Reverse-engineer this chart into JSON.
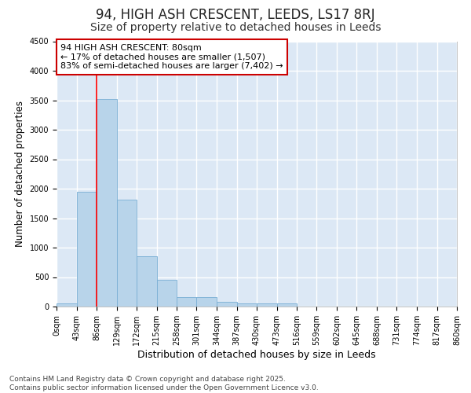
{
  "title1": "94, HIGH ASH CRESCENT, LEEDS, LS17 8RJ",
  "title2": "Size of property relative to detached houses in Leeds",
  "xlabel": "Distribution of detached houses by size in Leeds",
  "ylabel": "Number of detached properties",
  "bin_edges": [
    0,
    43,
    86,
    129,
    172,
    215,
    258,
    301,
    344,
    387,
    430,
    473,
    516,
    559,
    602,
    645,
    688,
    731,
    774,
    817,
    860
  ],
  "bar_heights": [
    50,
    1950,
    3520,
    1820,
    860,
    450,
    160,
    160,
    85,
    60,
    50,
    50,
    0,
    0,
    0,
    0,
    0,
    0,
    0,
    0
  ],
  "bar_color": "#b8d4ea",
  "bar_edgecolor": "#7aafd4",
  "background_color": "#dce8f5",
  "grid_color": "#ffffff",
  "fig_background": "#ffffff",
  "red_line_x": 86,
  "annotation_text": "94 HIGH ASH CRESCENT: 80sqm\n← 17% of detached houses are smaller (1,507)\n83% of semi-detached houses are larger (7,402) →",
  "annotation_box_color": "#ffffff",
  "annotation_box_edgecolor": "#cc0000",
  "ylim": [
    0,
    4500
  ],
  "yticks": [
    0,
    500,
    1000,
    1500,
    2000,
    2500,
    3000,
    3500,
    4000,
    4500
  ],
  "tick_labels": [
    "0sqm",
    "43sqm",
    "86sqm",
    "129sqm",
    "172sqm",
    "215sqm",
    "258sqm",
    "301sqm",
    "344sqm",
    "387sqm",
    "430sqm",
    "473sqm",
    "516sqm",
    "559sqm",
    "602sqm",
    "645sqm",
    "688sqm",
    "731sqm",
    "774sqm",
    "817sqm",
    "860sqm"
  ],
  "footer_text": "Contains HM Land Registry data © Crown copyright and database right 2025.\nContains public sector information licensed under the Open Government Licence v3.0.",
  "title1_fontsize": 12,
  "title2_fontsize": 10,
  "xlabel_fontsize": 9,
  "ylabel_fontsize": 8.5,
  "tick_fontsize": 7,
  "footer_fontsize": 6.5,
  "annotation_fontsize": 8
}
